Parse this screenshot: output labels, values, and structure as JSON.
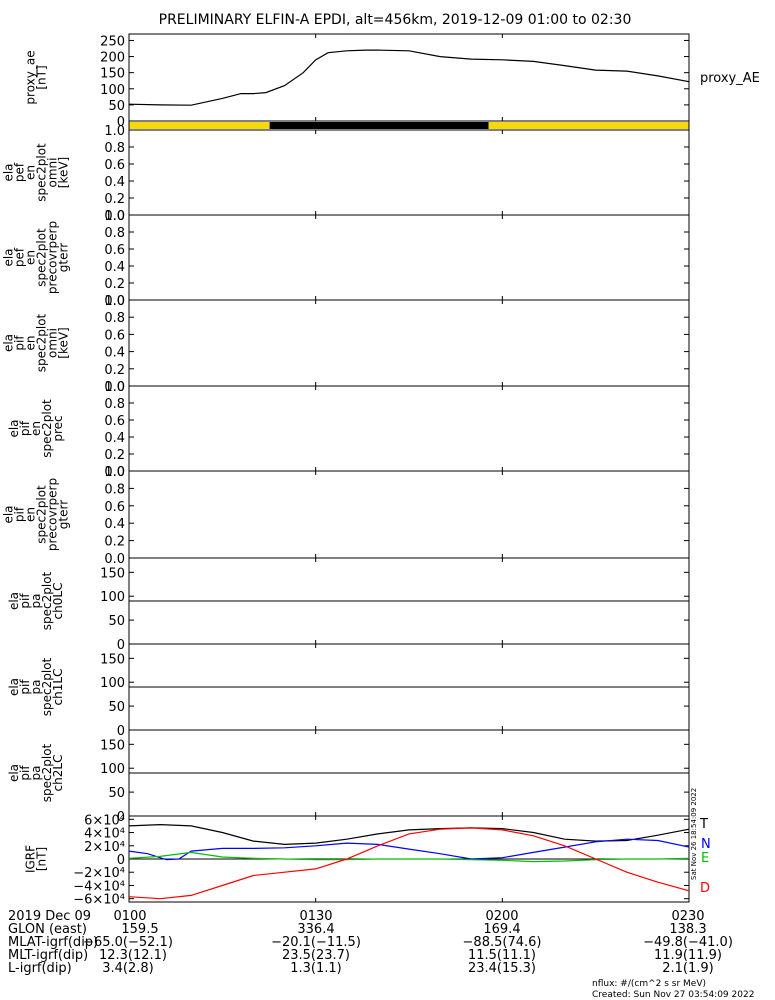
{
  "title": "PRELIMINARY ELFIN-A EPDI, alt=456km, 2019-12-09 01:00 to 02:30",
  "colors": {
    "yellow": "#f5d90a",
    "black": "#000000",
    "blue": "#0000ff",
    "green": "#00c000",
    "red": "#ff0000"
  },
  "chart_data": [
    {
      "id": "proxy_ae",
      "type": "line",
      "ylabel_lines": [
        "proxy_ae",
        "[nT]"
      ],
      "yticks": [
        "0",
        "50",
        "100",
        "150",
        "200",
        "250"
      ],
      "ylim": [
        0,
        270
      ],
      "series": [
        {
          "name": "proxy_AE",
          "x": [
            0,
            5,
            10,
            15,
            18,
            20,
            22,
            25,
            28,
            30,
            32,
            35,
            38,
            40,
            45,
            50,
            55,
            60,
            65,
            70,
            75,
            80,
            85,
            90
          ],
          "values": [
            52,
            50,
            49,
            70,
            85,
            85,
            88,
            110,
            150,
            190,
            212,
            218,
            220,
            220,
            218,
            200,
            192,
            190,
            185,
            172,
            158,
            155,
            140,
            122
          ]
        }
      ]
    },
    {
      "id": "status_bar",
      "type": "bar",
      "segments": [
        {
          "from": 0,
          "to": 22.6,
          "color": "yellow"
        },
        {
          "from": 22.6,
          "to": 57.8,
          "color": "black"
        },
        {
          "from": 57.8,
          "to": 90,
          "color": "yellow"
        }
      ]
    },
    {
      "id": "pef_omni",
      "type": "line",
      "ylabel_lines": [
        "ela",
        "pef",
        "en",
        "spec2plot",
        "omni",
        "[keV]"
      ],
      "yticks": [
        "0.0",
        "0.2",
        "0.4",
        "0.6",
        "0.8",
        "1.0"
      ],
      "ylim": [
        0,
        1
      ]
    },
    {
      "id": "pef_perp",
      "type": "line",
      "ylabel_lines": [
        "ela",
        "pef",
        "en",
        "spec2plot",
        "precovrperp",
        "gterr"
      ],
      "yticks": [
        "0.0",
        "0.2",
        "0.4",
        "0.6",
        "0.8",
        "1.0"
      ],
      "ylim": [
        0,
        1
      ]
    },
    {
      "id": "pif_omni",
      "type": "line",
      "ylabel_lines": [
        "ela",
        "pif",
        "en",
        "spec2plot",
        "omni",
        "[keV]"
      ],
      "yticks": [
        "0.0",
        "0.2",
        "0.4",
        "0.6",
        "0.8",
        "1.0"
      ],
      "ylim": [
        0,
        1
      ]
    },
    {
      "id": "pif_prec",
      "type": "line",
      "ylabel_lines": [
        "ela",
        "pif",
        "en",
        "spec2plot",
        "prec"
      ],
      "yticks": [
        "0.0",
        "0.2",
        "0.4",
        "0.6",
        "0.8",
        "1.0"
      ],
      "ylim": [
        0,
        1
      ]
    },
    {
      "id": "pif_perp",
      "type": "line",
      "ylabel_lines": [
        "ela",
        "pif",
        "en",
        "spec2plot",
        "precovrperp",
        "gterr"
      ],
      "yticks": [
        "0.0",
        "0.2",
        "0.4",
        "0.6",
        "0.8",
        "1.0"
      ],
      "ylim": [
        0,
        1
      ]
    },
    {
      "id": "pa_ch0",
      "type": "line",
      "ylabel_lines": [
        "ela",
        "pif",
        "pa",
        "spec2plot",
        "ch0LC"
      ],
      "yticks": [
        "0",
        "50",
        "100",
        "150"
      ],
      "ylim": [
        0,
        180
      ],
      "hline": 90
    },
    {
      "id": "pa_ch1",
      "type": "line",
      "ylabel_lines": [
        "ela",
        "pif",
        "pa",
        "spec2plot",
        "ch1LC"
      ],
      "yticks": [
        "0",
        "50",
        "100",
        "150"
      ],
      "ylim": [
        0,
        180
      ],
      "hline": 90
    },
    {
      "id": "pa_ch2",
      "type": "line",
      "ylabel_lines": [
        "ela",
        "pif",
        "pa",
        "spec2plot",
        "ch2LC"
      ],
      "yticks": [
        "0",
        "50",
        "100",
        "150"
      ],
      "ylim": [
        0,
        180
      ],
      "hline": 90
    },
    {
      "id": "igrf",
      "type": "line",
      "ylabel_lines": [
        "IGRF",
        "[nT]"
      ],
      "yticks": [
        {
          "value": -60000,
          "label": "−6×10⁴"
        },
        {
          "value": -40000,
          "label": "−4×10⁴"
        },
        {
          "value": -20000,
          "label": "−2×10⁴"
        },
        {
          "value": 0,
          "label": "0"
        },
        {
          "value": 20000,
          "label": "2×10⁴"
        },
        {
          "value": 40000,
          "label": "4×10⁴"
        },
        {
          "value": 60000,
          "label": "6×10⁴"
        }
      ],
      "ylim": [
        -65000,
        65000
      ],
      "hline": 0,
      "series": [
        {
          "name": "T",
          "color": "black",
          "x": [
            0,
            5,
            10,
            15,
            20,
            25,
            30,
            35,
            40,
            45,
            50,
            55,
            60,
            65,
            70,
            75,
            80,
            85,
            90
          ],
          "values": [
            50000,
            52000,
            50000,
            40000,
            27000,
            22000,
            24000,
            30000,
            38000,
            44000,
            46000,
            47000,
            46000,
            40000,
            30000,
            27000,
            28000,
            36000,
            45000
          ]
        },
        {
          "name": "N",
          "color": "blue",
          "x": [
            0,
            3,
            6,
            8,
            10,
            15,
            20,
            25,
            30,
            35,
            40,
            45,
            50,
            55,
            60,
            65,
            70,
            75,
            80,
            85,
            90
          ],
          "values": [
            12000,
            8000,
            -1000,
            0,
            12000,
            16000,
            16000,
            17000,
            20000,
            24000,
            22000,
            15000,
            8000,
            0,
            2000,
            10000,
            18000,
            26000,
            30000,
            28000,
            18000
          ]
        },
        {
          "name": "E",
          "color": "green",
          "x": [
            0,
            5,
            10,
            15,
            20,
            25,
            30,
            35,
            40,
            45,
            50,
            55,
            60,
            65,
            70,
            75,
            80,
            85,
            90
          ],
          "values": [
            1000,
            4000,
            10000,
            3000,
            1000,
            0,
            -1000,
            -1000,
            0,
            0,
            0,
            -1000,
            -2000,
            -4000,
            -3000,
            -1000,
            0,
            0,
            1000
          ]
        },
        {
          "name": "D",
          "color": "red",
          "x": [
            0,
            5,
            10,
            15,
            20,
            25,
            30,
            35,
            40,
            45,
            50,
            55,
            60,
            65,
            70,
            75,
            80,
            85,
            90
          ],
          "values": [
            -57000,
            -60000,
            -55000,
            -40000,
            -25000,
            -20000,
            -15000,
            0,
            20000,
            38000,
            45000,
            47000,
            44000,
            35000,
            20000,
            0,
            -20000,
            -35000,
            -48000
          ]
        }
      ]
    }
  ],
  "legend": {
    "proxy": "proxy_AE",
    "T": "T",
    "N": "N",
    "E": "E",
    "D": "D"
  },
  "vertical_stamp": "Sat Nov 26 18:54:09 2022",
  "orbit_table": {
    "rows": [
      {
        "label": "2019 Dec 09",
        "values": [
          "0100",
          "0130",
          "0200",
          "0230"
        ]
      },
      {
        "label": "GLON (east)",
        "values": [
          "159.5",
          "336.4",
          "169.4",
          "138.3"
        ]
      },
      {
        "label": "MLAT-igrf(dip)",
        "values": [
          "−65.0(−52.1)",
          "−20.1(−11.5)",
          "−88.5(74.6)",
          "−49.8(−41.0)"
        ]
      },
      {
        "label": "MLT-igrf(dip)",
        "values": [
          "12.3(12.1)",
          "23.5(23.7)",
          "11.5(11.1)",
          "11.9(11.9)"
        ]
      },
      {
        "label": "L-igrf(dip)",
        "values": [
          "3.4(2.8)",
          "1.3(1.1)",
          "23.4(15.3)",
          "2.1(1.9)"
        ]
      }
    ]
  },
  "footer": {
    "units": "nflux: #/(cm^2 s sr MeV)",
    "created": "Created: Sun Nov 27 03:54:09 2022"
  }
}
